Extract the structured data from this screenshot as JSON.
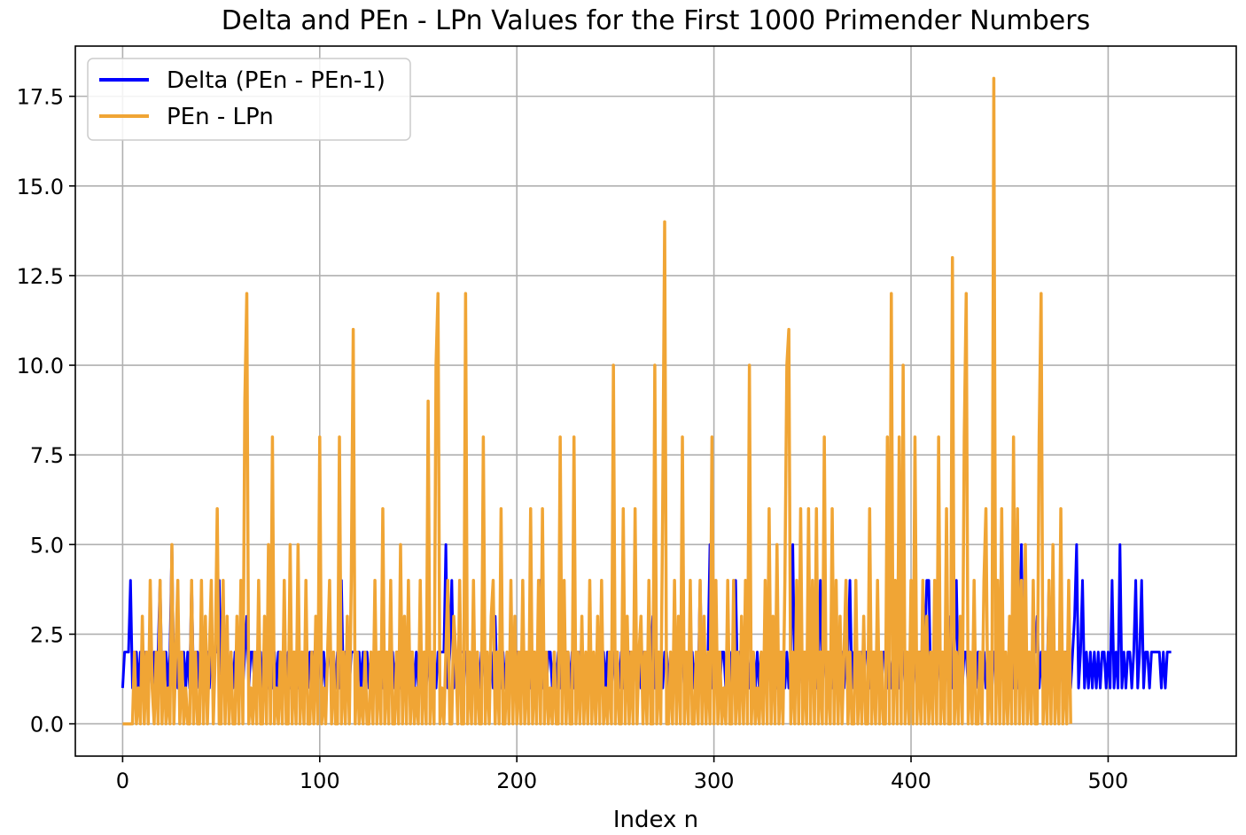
{
  "chart_data": {
    "type": "line",
    "title": "Delta and PEn - LPn Values for the First 1000 Primender Numbers",
    "xlabel": "Index n",
    "ylabel": "",
    "xlim": [
      -24,
      565
    ],
    "ylim": [
      -0.9,
      18.9
    ],
    "xticks": [
      0,
      100,
      200,
      300,
      400,
      500
    ],
    "xtick_labels": [
      "0",
      "100",
      "200",
      "300",
      "400",
      "500"
    ],
    "yticks": [
      0,
      2.5,
      5,
      7.5,
      10,
      12.5,
      15,
      17.5
    ],
    "ytick_labels": [
      "0.0",
      "2.5",
      "5.0",
      "7.5",
      "10.0",
      "12.5",
      "15.0",
      "17.5"
    ],
    "grid": true,
    "legend": "upper left",
    "series": [
      {
        "name": "Delta (PEn - PEn-1)",
        "color": "#0000ff",
        "x_start": 0,
        "x_step": 1,
        "values": [
          1,
          2,
          2,
          2,
          4,
          1,
          2,
          2,
          1,
          2,
          1,
          2,
          1,
          2,
          2,
          1,
          2,
          1,
          2,
          4,
          1,
          2,
          2,
          1,
          2,
          5,
          1,
          2,
          1,
          2,
          1,
          2,
          1,
          2,
          1,
          4,
          1,
          2,
          2,
          1,
          2,
          1,
          2,
          2,
          1,
          2,
          1,
          2,
          2,
          4,
          1,
          2,
          1,
          2,
          1,
          2,
          1,
          2,
          2,
          1,
          2,
          1,
          2,
          3,
          1,
          2,
          2,
          1,
          2,
          1,
          2,
          1,
          2,
          1,
          1,
          2,
          1,
          2,
          1,
          2,
          2,
          1,
          2,
          1,
          2,
          1,
          2,
          1,
          2,
          1,
          2,
          1,
          2,
          2,
          1,
          2,
          1,
          2,
          1,
          2,
          2,
          1,
          2,
          1,
          2,
          2,
          1,
          2,
          1,
          2,
          1,
          4,
          1,
          2,
          2,
          1,
          2,
          2,
          2,
          2,
          2,
          1,
          2,
          1,
          2,
          1,
          2,
          1,
          2,
          1,
          2,
          2,
          1,
          2,
          1,
          2,
          1,
          2,
          1,
          2,
          2,
          1,
          2,
          1,
          2,
          1,
          2,
          2,
          1,
          2,
          1,
          2,
          1,
          2,
          1,
          2,
          1,
          2,
          2,
          1,
          2,
          2,
          2,
          2,
          5,
          1,
          2,
          4,
          1,
          2,
          1,
          2,
          2,
          2,
          2,
          1,
          2,
          1,
          2,
          1,
          2,
          1,
          2,
          2,
          1,
          2,
          1,
          2,
          1,
          3,
          1,
          2,
          1,
          2,
          1,
          2,
          1,
          2,
          2,
          1,
          2,
          1,
          2,
          1,
          2,
          1,
          2,
          1,
          2,
          2,
          1,
          2,
          4,
          1,
          2,
          1,
          2,
          2,
          1,
          2,
          1,
          2,
          1,
          2,
          1,
          2,
          2,
          1,
          2,
          1,
          2,
          1,
          2,
          2,
          1,
          2,
          1,
          2,
          1,
          2,
          1,
          2,
          2,
          1,
          2,
          1,
          2,
          1,
          2,
          2,
          1,
          2,
          1,
          2,
          1,
          2,
          1,
          2,
          2,
          1,
          2,
          1,
          2,
          1,
          2,
          1,
          2,
          1,
          2,
          3,
          1,
          2,
          1,
          2,
          1,
          2,
          2,
          1,
          2,
          1,
          2,
          1,
          2,
          2,
          2,
          1,
          2,
          1,
          2,
          2,
          1,
          2,
          1,
          4,
          1,
          2,
          1,
          2,
          5,
          1,
          2,
          1,
          2,
          1,
          2,
          2,
          1,
          2,
          1,
          2,
          1,
          4,
          1,
          2,
          1,
          2,
          1,
          2,
          1,
          2,
          2,
          1,
          2,
          1,
          2,
          1,
          2,
          1,
          2,
          2,
          1,
          2,
          1,
          2,
          1,
          2,
          1,
          2,
          1,
          2,
          5,
          1,
          2,
          1,
          2,
          1,
          2,
          1,
          2,
          2,
          1,
          2,
          1,
          2,
          4,
          1,
          2,
          2,
          1,
          2,
          1,
          2,
          1,
          2,
          1,
          2,
          1,
          2,
          2,
          4,
          1,
          2,
          1,
          2,
          1,
          2,
          1,
          2,
          2,
          1,
          2,
          1,
          2,
          1,
          2,
          1,
          2,
          2,
          1,
          2,
          1,
          2,
          1,
          2,
          1,
          2,
          2,
          1,
          2,
          1,
          2,
          1,
          2,
          1,
          2,
          2,
          1,
          2,
          4,
          4,
          1,
          2,
          1,
          2,
          2,
          1,
          2,
          1,
          2,
          1,
          3,
          1,
          2,
          4,
          1,
          2,
          1,
          2,
          2,
          1,
          2,
          1,
          2,
          1,
          2,
          2,
          1,
          2,
          1,
          2,
          1,
          2,
          2,
          1,
          2,
          1,
          2,
          1,
          2,
          1,
          2,
          2,
          1,
          2,
          1,
          2,
          5,
          1,
          2,
          1,
          2,
          1,
          2,
          2,
          3,
          1,
          2,
          1,
          2,
          1,
          4,
          1,
          2,
          1,
          2,
          1,
          2,
          1,
          2,
          2,
          2,
          1,
          2,
          3,
          5,
          1,
          2,
          4,
          1,
          2,
          1,
          2,
          1,
          2,
          1,
          2,
          1,
          2,
          2,
          1,
          2,
          1,
          4,
          1,
          2,
          1,
          5,
          1,
          2,
          1,
          2,
          2,
          1,
          2,
          4,
          1,
          2,
          4,
          1,
          2,
          2,
          1,
          2,
          2,
          2,
          2,
          2,
          1,
          2,
          1,
          2,
          2,
          2
        ]
      },
      {
        "name": "PEn - LPn",
        "color": "#f0a535",
        "x_start": 0,
        "x_step": 1,
        "values": [
          0,
          0,
          0,
          0,
          0,
          0,
          2,
          0,
          1,
          0,
          3,
          0,
          2,
          0,
          4,
          1,
          0,
          2,
          0,
          4,
          0,
          2,
          0,
          1,
          0,
          5,
          0,
          2,
          4,
          0,
          2,
          0,
          1,
          0,
          0,
          4,
          0,
          2,
          0,
          0,
          4,
          0,
          3,
          0,
          2,
          4,
          0,
          2,
          6,
          0,
          0,
          4,
          0,
          3,
          0,
          2,
          0,
          0,
          3,
          0,
          4,
          0,
          9,
          12,
          0,
          1,
          0,
          2,
          0,
          4,
          0,
          0,
          3,
          0,
          5,
          0,
          8,
          0,
          1,
          0,
          2,
          0,
          4,
          0,
          0,
          5,
          0,
          2,
          0,
          5,
          0,
          2,
          0,
          4,
          0,
          0,
          2,
          0,
          3,
          0,
          8,
          0,
          1,
          0,
          2,
          4,
          0,
          2,
          0,
          0,
          8,
          0,
          2,
          0,
          3,
          0,
          4,
          11,
          0,
          2,
          0,
          1,
          0,
          2,
          0,
          0,
          2,
          0,
          4,
          0,
          2,
          0,
          6,
          0,
          2,
          0,
          4,
          0,
          0,
          2,
          0,
          5,
          0,
          3,
          0,
          4,
          0,
          2,
          0,
          1,
          0,
          4,
          0,
          2,
          0,
          9,
          0,
          2,
          0,
          10,
          12,
          0,
          1,
          0,
          2,
          4,
          0,
          0,
          3,
          2,
          0,
          4,
          0,
          0,
          12,
          0,
          2,
          0,
          4,
          0,
          2,
          0,
          0,
          8,
          0,
          2,
          0,
          3,
          4,
          0,
          2,
          0,
          6,
          0,
          0,
          2,
          0,
          4,
          0,
          3,
          0,
          2,
          0,
          4,
          0,
          2,
          0,
          6,
          0,
          2,
          0,
          4,
          0,
          6,
          0,
          2,
          0,
          1,
          0,
          2,
          0,
          0,
          8,
          0,
          4,
          0,
          2,
          0,
          0,
          8,
          0,
          2,
          0,
          3,
          0,
          2,
          0,
          4,
          0,
          2,
          0,
          3,
          0,
          4,
          0,
          1,
          0,
          2,
          0,
          10,
          0,
          2,
          0,
          0,
          6,
          0,
          3,
          0,
          2,
          0,
          6,
          0,
          2,
          3,
          0,
          2,
          0,
          4,
          0,
          0,
          10,
          0,
          2,
          0,
          6,
          14,
          0,
          0,
          2,
          0,
          4,
          0,
          3,
          0,
          8,
          0,
          2,
          0,
          4,
          0,
          0,
          2,
          0,
          4,
          0,
          3,
          0,
          2,
          0,
          8,
          0,
          4,
          0,
          2,
          0,
          1,
          0,
          4,
          0,
          0,
          4,
          0,
          2,
          0,
          3,
          0,
          4,
          0,
          10,
          0,
          2,
          0,
          1,
          0,
          2,
          0,
          4,
          0,
          6,
          0,
          3,
          0,
          5,
          0,
          2,
          0,
          4,
          10,
          11,
          0,
          2,
          0,
          4,
          0,
          6,
          0,
          2,
          0,
          6,
          0,
          4,
          0,
          6,
          0,
          2,
          0,
          8,
          0,
          2,
          0,
          6,
          0,
          4,
          0,
          3,
          0,
          2,
          4,
          0,
          2,
          0,
          0,
          4,
          0,
          2,
          0,
          3,
          0,
          0,
          6,
          0,
          2,
          0,
          4,
          0,
          2,
          0,
          0,
          8,
          0,
          12,
          0,
          4,
          0,
          8,
          0,
          10,
          0,
          2,
          0,
          4,
          0,
          8,
          0,
          2,
          0,
          4,
          0,
          3,
          0,
          2,
          0,
          4,
          0,
          8,
          0,
          2,
          0,
          6,
          0,
          0,
          13,
          0,
          2,
          0,
          3,
          0,
          8,
          12,
          0,
          2,
          0,
          4,
          0,
          0,
          2,
          0,
          4,
          6,
          0,
          2,
          0,
          18,
          0,
          4,
          0,
          6,
          0,
          2,
          0,
          3,
          0,
          8,
          0,
          6,
          0,
          4,
          0,
          5,
          0,
          2,
          0,
          4,
          0,
          0,
          8,
          12,
          0,
          2,
          0,
          4,
          0,
          5,
          0,
          2,
          0,
          6,
          0,
          2,
          0,
          4,
          0
        ]
      }
    ]
  }
}
